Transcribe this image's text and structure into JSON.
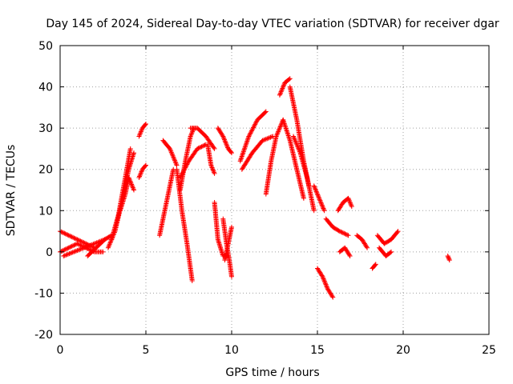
{
  "chart_data": {
    "type": "scatter",
    "title": "Day 145 of 2024, Sidereal Day-to-day VTEC variation (SDTVAR) for receiver dgar",
    "xlabel": "GPS time / hours",
    "ylabel": "SDTVAR / TECUs",
    "xlim": [
      0,
      25
    ],
    "ylim": [
      -20,
      50
    ],
    "xticks": [
      0,
      5,
      10,
      15,
      20,
      25
    ],
    "yticks": [
      -20,
      -10,
      0,
      10,
      20,
      30,
      40,
      50
    ],
    "grid": true,
    "marker": "+",
    "color": "#ff0000",
    "segments": [
      {
        "name": "early-cluster-a",
        "x": [
          0,
          0.5,
          1.0,
          1.5,
          2.0
        ],
        "y": [
          5,
          4,
          3,
          2,
          1
        ]
      },
      {
        "name": "early-cluster-b",
        "x": [
          0,
          0.5,
          1.0,
          1.5,
          2.0,
          2.5
        ],
        "y": [
          0,
          1,
          2,
          1,
          0,
          0
        ]
      },
      {
        "name": "early-cluster-c",
        "x": [
          0.2,
          0.8,
          1.4,
          2.0,
          2.6
        ],
        "y": [
          -1,
          0,
          1,
          2,
          3
        ]
      },
      {
        "name": "early-cluster-d",
        "x": [
          1.6,
          2.1,
          2.6,
          3.0
        ],
        "y": [
          -1,
          1,
          3,
          4
        ]
      },
      {
        "name": "rise-1",
        "x": [
          3.0,
          3.4,
          3.8,
          4.1
        ],
        "y": [
          3,
          9,
          18,
          25
        ]
      },
      {
        "name": "rise-2",
        "x": [
          2.8,
          3.2,
          3.6,
          4.0,
          4.3
        ],
        "y": [
          1,
          5,
          12,
          20,
          24
        ]
      },
      {
        "name": "rise-3",
        "x": [
          3.5,
          3.8,
          4.0,
          4.3
        ],
        "y": [
          10,
          14,
          18,
          15
        ]
      },
      {
        "name": "peak-5",
        "x": [
          4.6,
          4.8,
          5.0
        ],
        "y": [
          28,
          30,
          31
        ]
      },
      {
        "name": "mid-5",
        "x": [
          4.6,
          4.8,
          5.0
        ],
        "y": [
          18,
          20,
          21
        ]
      },
      {
        "name": "fall-6",
        "x": [
          5.8,
          6.2,
          6.6
        ],
        "y": [
          4,
          12,
          20
        ]
      },
      {
        "name": "s-6",
        "x": [
          6.0,
          6.4,
          6.8
        ],
        "y": [
          27,
          25,
          21
        ]
      },
      {
        "name": "drop-7",
        "x": [
          6.8,
          7.1,
          7.4,
          7.7
        ],
        "y": [
          20,
          10,
          2,
          -7
        ]
      },
      {
        "name": "up-7",
        "x": [
          7.0,
          7.3,
          7.6,
          7.8
        ],
        "y": [
          15,
          22,
          28,
          30
        ]
      },
      {
        "name": "arc-8",
        "x": [
          7.6,
          8.0,
          8.5,
          9.0
        ],
        "y": [
          30,
          30,
          28,
          25
        ]
      },
      {
        "name": "band-8",
        "x": [
          7.0,
          7.5,
          8.0,
          8.5
        ],
        "y": [
          18,
          22,
          25,
          26
        ]
      },
      {
        "name": "drop-9",
        "x": [
          8.6,
          8.8,
          9.0
        ],
        "y": [
          26,
          21,
          19
        ]
      },
      {
        "name": "peak-9",
        "x": [
          9.2,
          9.5,
          9.8,
          10.0
        ],
        "y": [
          30,
          28,
          25,
          24
        ]
      },
      {
        "name": "v-9",
        "x": [
          9.0,
          9.2,
          9.5,
          9.8
        ],
        "y": [
          12,
          3,
          -1,
          -1
        ]
      },
      {
        "name": "v-10",
        "x": [
          9.5,
          9.7,
          9.9,
          10.0
        ],
        "y": [
          8,
          2,
          -3,
          -6
        ]
      },
      {
        "name": "up-10",
        "x": [
          9.6,
          9.8,
          10.0
        ],
        "y": [
          -2,
          2,
          6
        ]
      },
      {
        "name": "arc-11",
        "x": [
          10.5,
          11.0,
          11.5,
          12.0
        ],
        "y": [
          22,
          28,
          32,
          34
        ]
      },
      {
        "name": "arc-11b",
        "x": [
          10.6,
          11.2,
          11.8,
          12.4
        ],
        "y": [
          20,
          24,
          27,
          28
        ]
      },
      {
        "name": "up-12",
        "x": [
          12.0,
          12.3,
          12.6,
          13.0
        ],
        "y": [
          14,
          22,
          28,
          32
        ]
      },
      {
        "name": "peak-13",
        "x": [
          12.8,
          13.1,
          13.4
        ],
        "y": [
          38,
          41,
          42
        ]
      },
      {
        "name": "fall-13",
        "x": [
          13.4,
          13.8,
          14.2,
          14.5
        ],
        "y": [
          40,
          32,
          22,
          16
        ]
      },
      {
        "name": "fall-13b",
        "x": [
          13.0,
          13.4,
          13.8,
          14.2
        ],
        "y": [
          32,
          27,
          20,
          13
        ]
      },
      {
        "name": "fall-14",
        "x": [
          13.6,
          14.0,
          14.4,
          14.8
        ],
        "y": [
          28,
          24,
          18,
          10
        ]
      },
      {
        "name": "tail-15",
        "x": [
          14.8,
          15.1,
          15.4
        ],
        "y": [
          16,
          13,
          10
        ]
      },
      {
        "name": "low-15",
        "x": [
          15.0,
          15.3,
          15.6,
          15.9
        ],
        "y": [
          -4,
          -6,
          -9,
          -11
        ]
      },
      {
        "name": "mid-16",
        "x": [
          15.5,
          15.9,
          16.3,
          16.8
        ],
        "y": [
          8,
          6,
          5,
          4
        ]
      },
      {
        "name": "hump-16",
        "x": [
          16.2,
          16.5,
          16.8,
          17.0
        ],
        "y": [
          10,
          12,
          13,
          11
        ]
      },
      {
        "name": "low-16",
        "x": [
          16.3,
          16.6,
          16.9
        ],
        "y": [
          0,
          1,
          -1
        ]
      },
      {
        "name": "late-18",
        "x": [
          17.3,
          17.6,
          17.9
        ],
        "y": [
          4,
          3,
          1
        ]
      },
      {
        "name": "late-18b",
        "x": [
          18.2,
          18.4
        ],
        "y": [
          -4,
          -3
        ]
      },
      {
        "name": "late-19",
        "x": [
          18.5,
          18.9,
          19.3,
          19.7
        ],
        "y": [
          4,
          2,
          3,
          5
        ]
      },
      {
        "name": "late-19b",
        "x": [
          18.6,
          19.0,
          19.3
        ],
        "y": [
          1,
          -1,
          0
        ]
      },
      {
        "name": "late-22",
        "x": [
          22.6,
          22.7
        ],
        "y": [
          -1,
          -2
        ]
      }
    ]
  }
}
